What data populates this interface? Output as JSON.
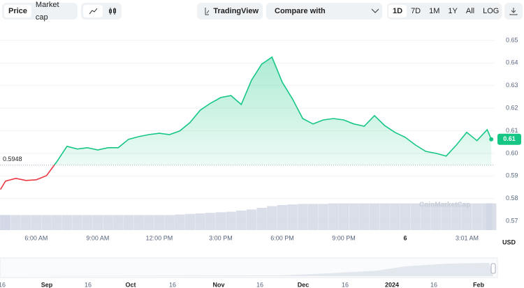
{
  "toolbar": {
    "metric_tabs": [
      "Price",
      "Market cap"
    ],
    "tradingview": "TradingView",
    "compare": "Compare with",
    "ranges": [
      "1D",
      "7D",
      "1M",
      "1Y",
      "All",
      "LOG"
    ]
  },
  "chart_data": {
    "type": "line",
    "color": "#16c784",
    "below_color": "#ea3943",
    "x": [
      4.25,
      4.5,
      5,
      5.5,
      6,
      6.5,
      7,
      7.5,
      8,
      8.5,
      9,
      9.5,
      10,
      10.5,
      11,
      11.5,
      12,
      12.5,
      13,
      13.5,
      14,
      14.5,
      15,
      15.5,
      16,
      16.5,
      17,
      17.5,
      18,
      18.5,
      19,
      19.5,
      20,
      20.5,
      21,
      21.5,
      22,
      22.5,
      23,
      23.5,
      24,
      24.5,
      25,
      25.5,
      26,
      26.5,
      27,
      27.5,
      28,
      28.2
    ],
    "values": [
      0.584,
      0.5877,
      0.5889,
      0.588,
      0.5883,
      0.5901,
      0.5963,
      0.6031,
      0.6019,
      0.6025,
      0.6015,
      0.6025,
      0.6025,
      0.6062,
      0.6074,
      0.6083,
      0.6089,
      0.6083,
      0.6099,
      0.6136,
      0.6191,
      0.6222,
      0.6247,
      0.6256,
      0.6216,
      0.6324,
      0.6395,
      0.6426,
      0.6315,
      0.6241,
      0.6154,
      0.613,
      0.6148,
      0.6154,
      0.6148,
      0.613,
      0.612,
      0.6167,
      0.6123,
      0.6093,
      0.6071,
      0.6037,
      0.6009,
      0.6,
      0.5988,
      0.6037,
      0.6093,
      0.6056,
      0.6105,
      0.6062
    ],
    "reference": 0.5948,
    "last_price": 0.61,
    "xlim": [
      4.23,
      28.33
    ],
    "xticks": [
      {
        "value": 6,
        "label": "6:00 AM"
      },
      {
        "value": 9,
        "label": "9:00 AM"
      },
      {
        "value": 12,
        "label": "12:00 PM"
      },
      {
        "value": 15,
        "label": "3:00 PM"
      },
      {
        "value": 18,
        "label": "6:00 PM"
      },
      {
        "value": 21,
        "label": "9:00 PM"
      },
      {
        "value": 24,
        "label": "6"
      },
      {
        "value": 27.017,
        "label": "3:01 AM"
      }
    ],
    "ylim": [
      0.566,
      0.654
    ],
    "yticks": [
      0.57,
      0.58,
      0.59,
      {
        "value": 0.6,
        "label": "0.60"
      },
      0.61,
      0.62,
      0.63,
      0.64,
      0.65
    ],
    "y_unit": "USD",
    "grid": true,
    "watermark": "CoinMarketCap",
    "volume": {
      "color": "#cfd6e4",
      "ylim": [
        0,
        100
      ],
      "values": [
        27,
        27,
        27,
        27,
        27,
        27,
        27,
        27,
        27,
        27,
        27,
        27,
        27,
        27,
        27,
        27,
        27,
        27,
        28,
        29,
        30,
        31,
        32,
        33,
        35,
        37,
        40,
        43,
        45,
        46,
        47,
        47,
        47,
        48,
        48,
        48,
        48,
        48,
        48,
        48,
        48,
        48,
        48,
        48,
        48,
        48,
        48,
        48,
        48,
        48
      ]
    },
    "navigator_labels": [
      "16",
      "Sep",
      "16",
      "Oct",
      "16",
      "Nov",
      "16",
      "Dec",
      "16",
      "2024",
      "16",
      "Feb"
    ]
  }
}
